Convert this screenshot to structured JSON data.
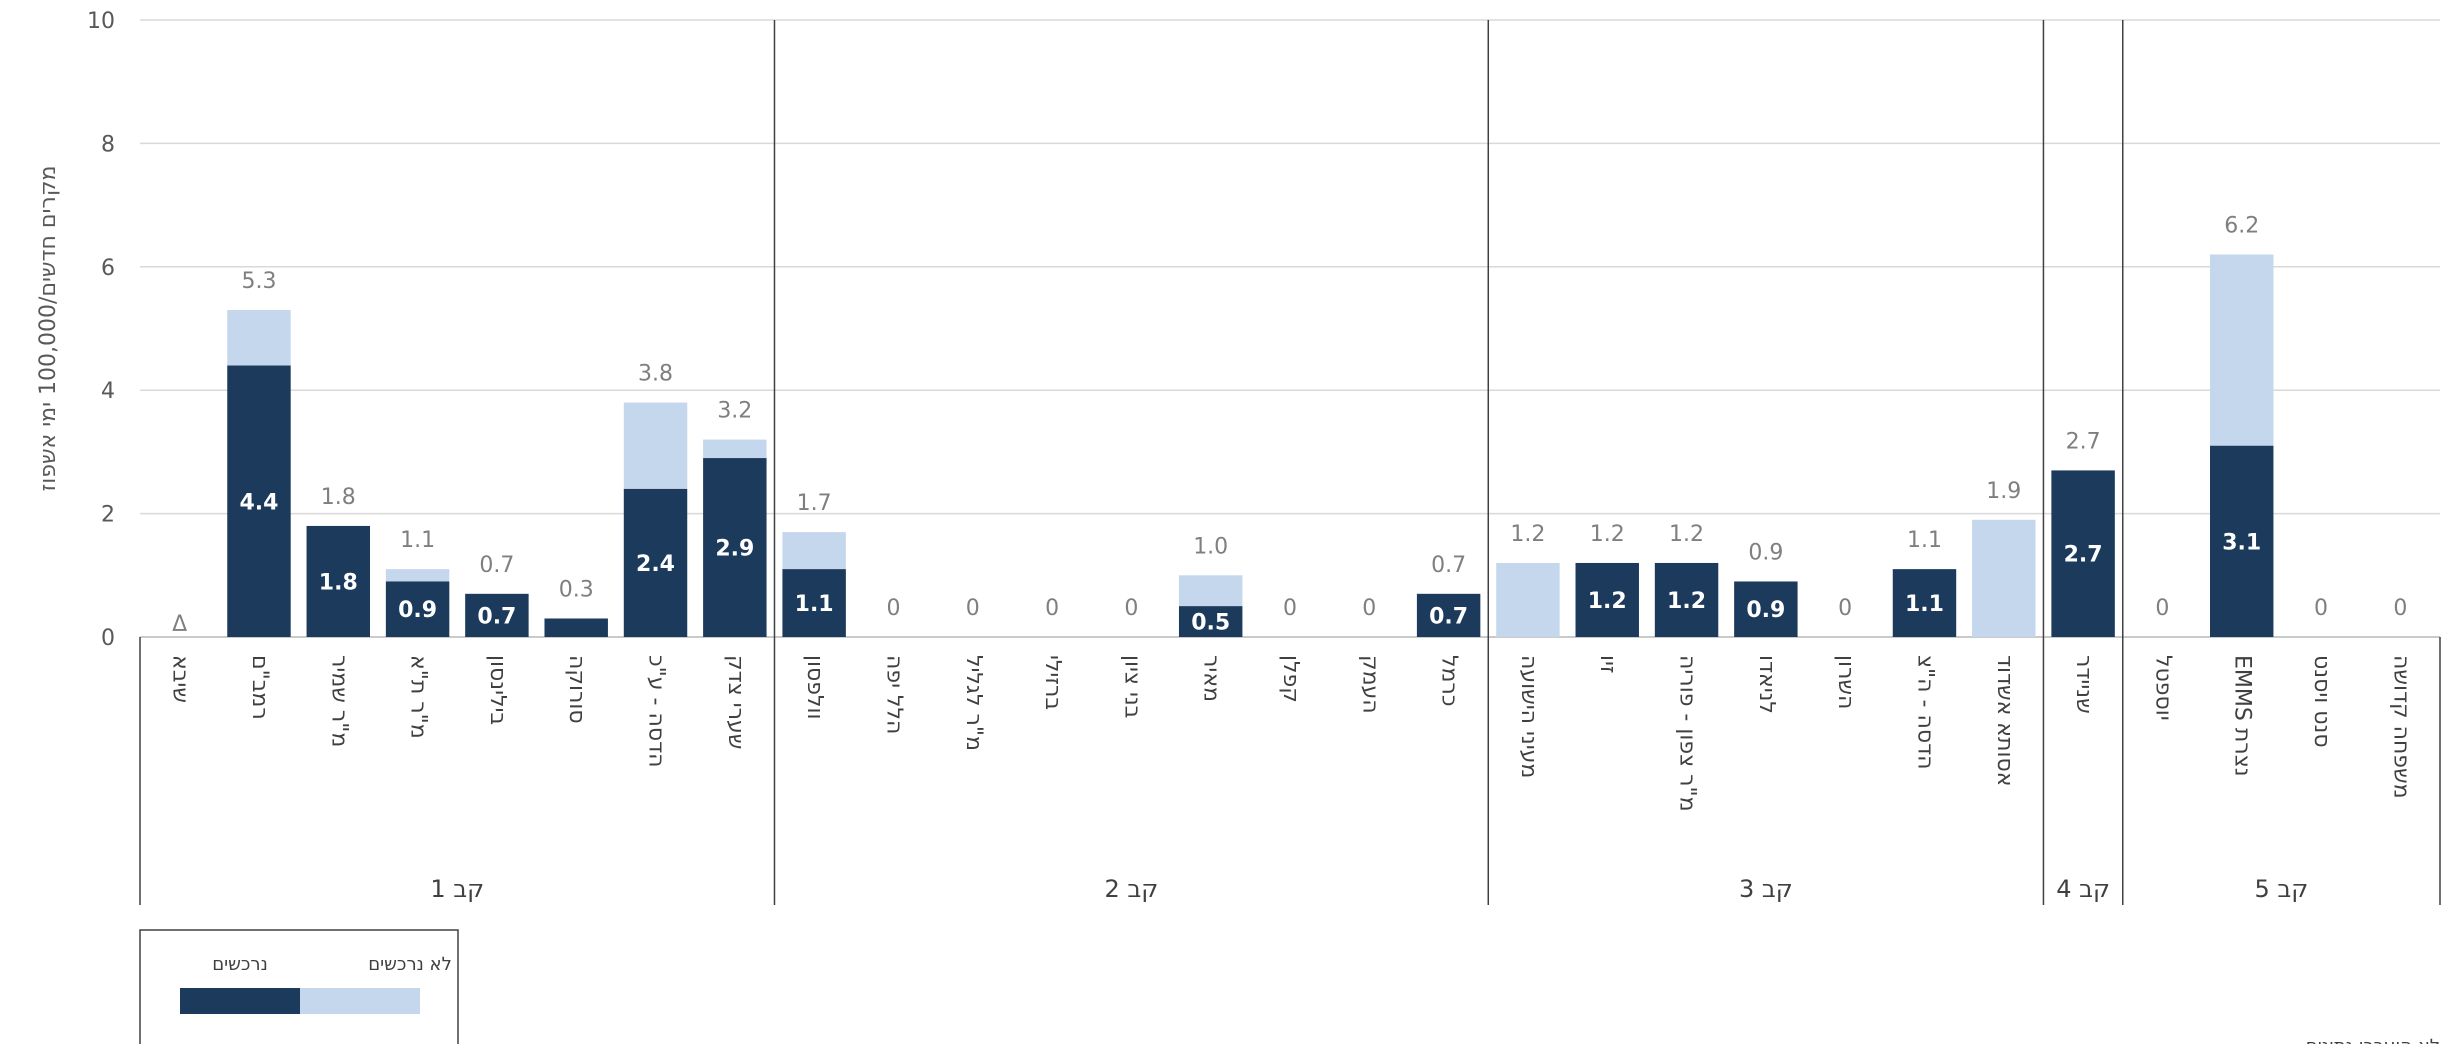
{
  "chart_data": {
    "type": "bar",
    "stacked": true,
    "ylabel": "מקרים חדשים/100,000 ימי אשפוז",
    "ylim": [
      0,
      10
    ],
    "yticks": [
      0,
      2,
      4,
      6,
      8,
      10
    ],
    "grid": true,
    "legend_position": "bottom-left",
    "colors": {
      "acquired": "#1b3a5c",
      "not_acquired": "#c5d7ed"
    },
    "series": [
      {
        "name": "נרכשים",
        "color": "#1b3a5c"
      },
      {
        "name": "לא נרכשים",
        "color": "#c5d7ed"
      }
    ],
    "groups": [
      {
        "label": "קב 1",
        "start": 0,
        "count": 8
      },
      {
        "label": "קב 2",
        "start": 8,
        "count": 9
      },
      {
        "label": "קב 3",
        "start": 17,
        "count": 7
      },
      {
        "label": "קב 4",
        "start": 24,
        "count": 1
      },
      {
        "label": "קב 5",
        "start": 25,
        "count": 4
      }
    ],
    "categories": [
      {
        "name": "שיבא",
        "acquired": 0,
        "total": 0,
        "show_total": false,
        "show_inside": false,
        "marker": "Δ"
      },
      {
        "name": "רמב\"ם",
        "acquired": 4.4,
        "total": 5.3,
        "show_total": true,
        "show_inside": true,
        "total_label": "5.3",
        "inside_label": "4.4"
      },
      {
        "name": "מ\"ר שמיר",
        "acquired": 1.8,
        "total": 1.8,
        "show_total": true,
        "show_inside": true,
        "total_label": "1.8",
        "inside_label": "1.8"
      },
      {
        "name": "מ\"ר ת\"א",
        "acquired": 0.9,
        "total": 1.1,
        "show_total": true,
        "show_inside": true,
        "total_label": "1.1",
        "inside_label": "0.9"
      },
      {
        "name": "בילינסון",
        "acquired": 0.7,
        "total": 0.7,
        "show_total": true,
        "show_inside": true,
        "total_label": "0.7",
        "inside_label": "0.7"
      },
      {
        "name": "סורוקה",
        "acquired": 0.3,
        "total": 0.3,
        "show_total": true,
        "show_inside": false,
        "total_label": "0.3"
      },
      {
        "name": "הדסה - ע\"כ",
        "acquired": 2.4,
        "total": 3.8,
        "show_total": true,
        "show_inside": true,
        "total_label": "3.8",
        "inside_label": "2.4"
      },
      {
        "name": "שערי צדק",
        "acquired": 2.9,
        "total": 3.2,
        "show_total": true,
        "show_inside": true,
        "total_label": "3.2",
        "inside_label": "2.9"
      },
      {
        "name": "וולפסון",
        "acquired": 1.1,
        "total": 1.7,
        "show_total": true,
        "show_inside": true,
        "total_label": "1.7",
        "inside_label": "1.1"
      },
      {
        "name": "הלל יפה",
        "acquired": 0,
        "total": 0,
        "show_total": true,
        "show_inside": false,
        "total_label": "0"
      },
      {
        "name": "מ\"ר לגליל",
        "acquired": 0,
        "total": 0,
        "show_total": true,
        "show_inside": false,
        "total_label": "0"
      },
      {
        "name": "ברזילי",
        "acquired": 0,
        "total": 0,
        "show_total": true,
        "show_inside": false,
        "total_label": "0"
      },
      {
        "name": "בני ציון",
        "acquired": 0,
        "total": 0,
        "show_total": true,
        "show_inside": false,
        "total_label": "0"
      },
      {
        "name": "מאיר",
        "acquired": 0.5,
        "total": 1.0,
        "show_total": true,
        "show_inside": true,
        "total_label": "1.0",
        "inside_label": "0.5"
      },
      {
        "name": "קפלן",
        "acquired": 0,
        "total": 0,
        "show_total": true,
        "show_inside": false,
        "total_label": "0"
      },
      {
        "name": "העמק",
        "acquired": 0,
        "total": 0,
        "show_total": true,
        "show_inside": false,
        "total_label": "0"
      },
      {
        "name": "כרמל",
        "acquired": 0.7,
        "total": 0.7,
        "show_total": true,
        "show_inside": true,
        "total_label": "0.7",
        "inside_label": "0.7"
      },
      {
        "name": "מעיני הישועה",
        "acquired": 0,
        "total": 1.2,
        "show_total": true,
        "show_inside": false,
        "total_label": "1.2"
      },
      {
        "name": "זיו",
        "acquired": 1.2,
        "total": 1.2,
        "show_total": true,
        "show_inside": true,
        "total_label": "1.2",
        "inside_label": "1.2"
      },
      {
        "name": "מ\"ר צפון - פוריה",
        "acquired": 1.2,
        "total": 1.2,
        "show_total": true,
        "show_inside": true,
        "total_label": "1.2",
        "inside_label": "1.2"
      },
      {
        "name": "לניאדו",
        "acquired": 0.9,
        "total": 0.9,
        "show_total": true,
        "show_inside": true,
        "total_label": "0.9",
        "inside_label": "0.9"
      },
      {
        "name": "השרון",
        "acquired": 0,
        "total": 0,
        "show_total": true,
        "show_inside": false,
        "total_label": "0"
      },
      {
        "name": "הדסה - ה\"צ",
        "acquired": 1.1,
        "total": 1.1,
        "show_total": true,
        "show_inside": true,
        "total_label": "1.1",
        "inside_label": "1.1"
      },
      {
        "name": "אסותא אשדוד",
        "acquired": 0,
        "total": 1.9,
        "show_total": true,
        "show_inside": false,
        "total_label": "1.9"
      },
      {
        "name": "שניידר",
        "acquired": 2.7,
        "total": 2.7,
        "show_total": true,
        "show_inside": true,
        "total_label": "2.7",
        "inside_label": "2.7"
      },
      {
        "name": "יוספטל",
        "acquired": 0,
        "total": 0,
        "show_total": true,
        "show_inside": false,
        "total_label": "0"
      },
      {
        "name": "EMMS נצרת",
        "acquired": 3.1,
        "total": 6.2,
        "show_total": true,
        "show_inside": true,
        "total_label": "6.2",
        "inside_label": "3.1"
      },
      {
        "name": "סנט ויסנט",
        "acquired": 0,
        "total": 0,
        "show_total": true,
        "show_inside": false,
        "total_label": "0"
      },
      {
        "name": "משפחה קדושה",
        "acquired": 0,
        "total": 0,
        "show_total": true,
        "show_inside": false,
        "total_label": "0"
      }
    ],
    "footnote": "לא הועברו נתונים"
  }
}
